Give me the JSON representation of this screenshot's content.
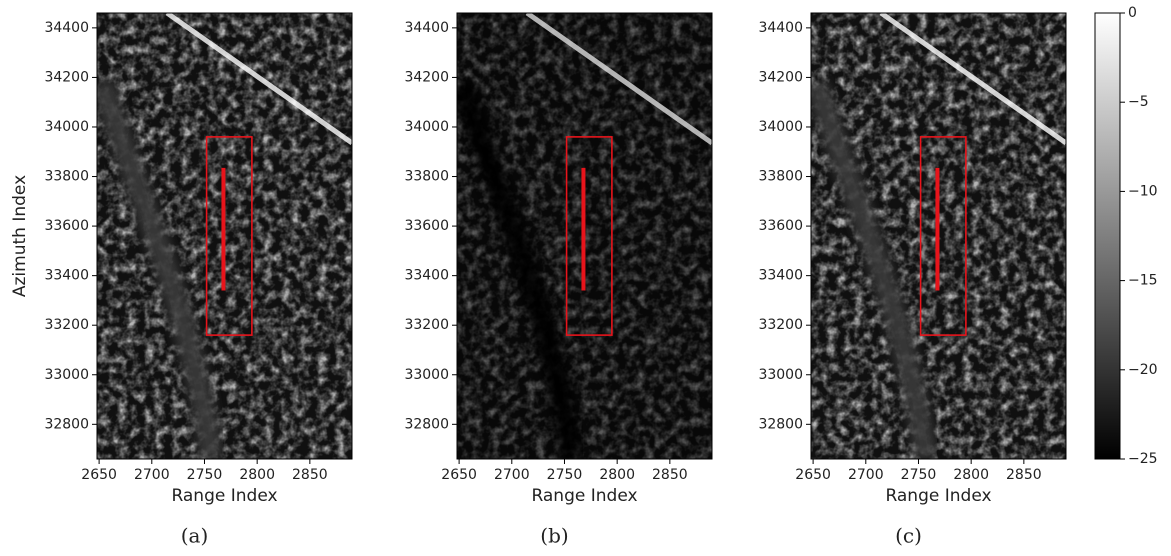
{
  "chart_data": [
    {
      "type": "image",
      "caption": "(a)",
      "xlabel": "Range Index",
      "ylabel": "Azimuth Index",
      "xlim": [
        2648,
        2890
      ],
      "ylim": [
        32660,
        34460
      ],
      "xticks": [
        2650,
        2700,
        2750,
        2800,
        2850
      ],
      "yticks": [
        32800,
        33000,
        33200,
        33400,
        33600,
        33800,
        34000,
        34200,
        34400
      ],
      "box": {
        "x": [
          2752,
          2795
        ],
        "y": [
          33160,
          33960
        ],
        "color": "#e8141b"
      },
      "line": {
        "x": 2768,
        "y": [
          33340,
          33835
        ],
        "color": "#e8141b"
      }
    },
    {
      "type": "image",
      "caption": "(b)",
      "xlabel": "Range Index",
      "xlim": [
        2648,
        2890
      ],
      "ylim": [
        32660,
        34460
      ],
      "xticks": [
        2650,
        2700,
        2750,
        2800,
        2850
      ],
      "yticks": [
        32800,
        33000,
        33200,
        33400,
        33600,
        33800,
        34000,
        34200,
        34400
      ],
      "box": {
        "x": [
          2752,
          2795
        ],
        "y": [
          33160,
          33960
        ],
        "color": "#e8141b"
      },
      "line": {
        "x": 2768,
        "y": [
          33340,
          33835
        ],
        "color": "#e8141b"
      }
    },
    {
      "type": "image",
      "caption": "(c)",
      "xlabel": "Range Index",
      "xlim": [
        2648,
        2890
      ],
      "ylim": [
        32660,
        34460
      ],
      "xticks": [
        2650,
        2700,
        2750,
        2800,
        2850
      ],
      "yticks": [
        32800,
        33000,
        33200,
        33400,
        33600,
        33800,
        34000,
        34200,
        34400
      ],
      "box": {
        "x": [
          2752,
          2795
        ],
        "y": [
          33160,
          33960
        ],
        "color": "#e8141b"
      },
      "line": {
        "x": 2768,
        "y": [
          33340,
          33835
        ],
        "color": "#e8141b"
      }
    },
    {
      "type": "colorbar",
      "zlim": [
        -25,
        0
      ],
      "zticks": [
        0,
        {
          "value": -5,
          "label": "−5"
        },
        {
          "value": -10,
          "label": "−10"
        },
        {
          "value": -15,
          "label": "−15"
        },
        {
          "value": -20,
          "label": "−20"
        },
        {
          "value": -25,
          "label": "−25"
        }
      ]
    }
  ]
}
